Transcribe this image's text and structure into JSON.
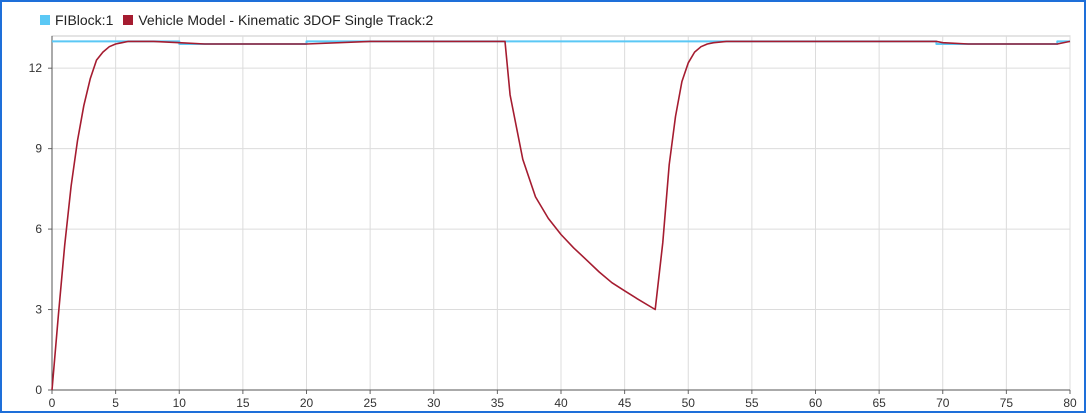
{
  "chart_data": {
    "type": "line",
    "xlim": [
      0,
      80
    ],
    "ylim": [
      0,
      13.2
    ],
    "grid": true,
    "legend_position": "top-left",
    "x_ticks": [
      0,
      5,
      10,
      15,
      20,
      25,
      30,
      35,
      40,
      45,
      50,
      55,
      60,
      65,
      70,
      75,
      80
    ],
    "y_ticks": [
      0,
      3,
      6,
      9,
      12
    ],
    "series": [
      {
        "name": "FIBlock:1",
        "color": "#5bc8f5",
        "x": [
          0,
          10,
          10,
          12,
          12,
          20,
          20,
          69.5,
          69.5,
          71.5,
          71.5,
          79,
          79,
          80
        ],
        "y": [
          13,
          13,
          12.9,
          12.9,
          12.9,
          12.9,
          13,
          13,
          12.9,
          12.9,
          12.9,
          12.9,
          13,
          13
        ]
      },
      {
        "name": "Vehicle Model - Kinematic 3DOF Single Track:2",
        "color": "#a51c30",
        "x": [
          0,
          0.5,
          1,
          1.5,
          2,
          2.5,
          3,
          3.5,
          4,
          4.5,
          5,
          5.5,
          6,
          7,
          8,
          10,
          12,
          15,
          20,
          25,
          30,
          35.6,
          36,
          37,
          38,
          39,
          40,
          41,
          42,
          43,
          44,
          45,
          46,
          47.4,
          48,
          48.5,
          49,
          49.5,
          50,
          50.5,
          51,
          51.5,
          52,
          53,
          54,
          55,
          60,
          65,
          69.5,
          70,
          72,
          75,
          79,
          80
        ],
        "y": [
          0,
          2.8,
          5.4,
          7.6,
          9.3,
          10.6,
          11.6,
          12.3,
          12.6,
          12.8,
          12.9,
          12.95,
          13,
          13,
          13,
          12.95,
          12.9,
          12.9,
          12.9,
          13,
          13,
          13,
          11,
          8.6,
          7.2,
          6.4,
          5.8,
          5.3,
          4.85,
          4.4,
          4.0,
          3.7,
          3.4,
          3.0,
          5.5,
          8.4,
          10.2,
          11.5,
          12.2,
          12.6,
          12.8,
          12.9,
          12.95,
          13,
          13,
          13,
          13,
          13,
          13,
          12.95,
          12.9,
          12.9,
          12.9,
          13
        ]
      }
    ]
  }
}
